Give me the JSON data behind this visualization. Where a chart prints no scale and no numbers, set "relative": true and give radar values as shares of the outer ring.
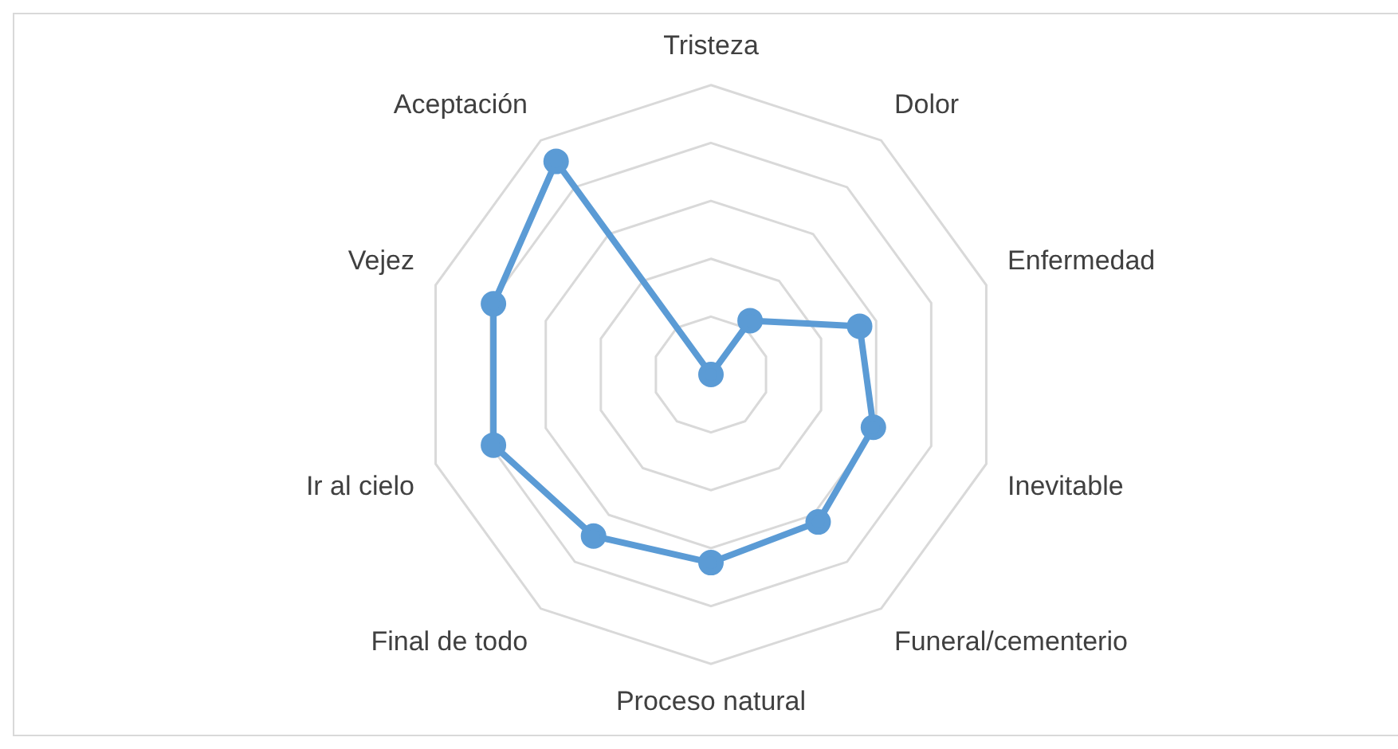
{
  "chart_data": {
    "type": "radar",
    "relative": true,
    "grid": true,
    "legend": false,
    "marker": "circle",
    "categories": [
      "Tristeza",
      "Dolor",
      "Enfermedad",
      "Inevitable",
      "Funeral/cementerio",
      "Proceso natural",
      "Final de todo",
      "Ir al cielo",
      "Vejez",
      "Aceptación"
    ],
    "series": [
      {
        "color": "#5b9bd5",
        "values": [
          0,
          0.23,
          0.54,
          0.59,
          0.63,
          0.65,
          0.69,
          0.79,
          0.79,
          0.91
        ]
      }
    ]
  }
}
